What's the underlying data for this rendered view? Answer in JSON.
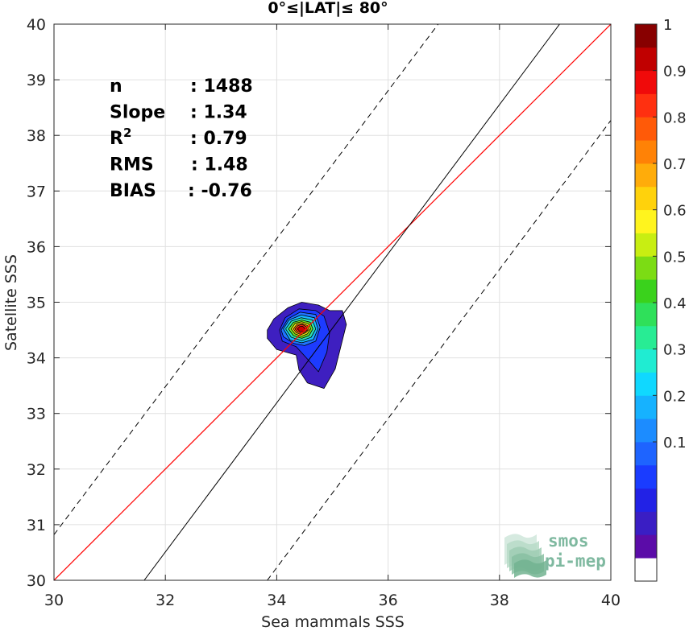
{
  "chart_data": {
    "type": "contour-scatter",
    "title": "0°≤|LAT|≤ 80°",
    "xlabel": "Sea mammals SSS",
    "ylabel": "Satellite SSS",
    "xlim": [
      30,
      40
    ],
    "ylim": [
      30,
      40
    ],
    "xticks": [
      30,
      32,
      34,
      36,
      38,
      40
    ],
    "yticks": [
      30,
      31,
      32,
      33,
      34,
      35,
      36,
      37,
      38,
      39,
      40
    ],
    "grid": true,
    "stats": [
      {
        "label": "n",
        "value": ": 1488"
      },
      {
        "label": "Slope",
        "value": ": 1.34"
      },
      {
        "label": "R",
        "sup": "2",
        "value": ": 0.79"
      },
      {
        "label": "RMS",
        "value": ": 1.48"
      },
      {
        "label": "BIAS",
        "value": ": -0.76"
      }
    ],
    "lines": {
      "identity": {
        "slope": 1,
        "intercept": 0,
        "color": "#ff0000"
      },
      "fit": {
        "points": [
          [
            31.62,
            30
          ],
          [
            39.08,
            40
          ]
        ],
        "color": "#000000"
      },
      "fit_upper": {
        "points": [
          [
            30,
            30.82
          ],
          [
            36.9,
            40
          ]
        ],
        "color": "#000000",
        "dashed": true
      },
      "fit_lower": {
        "points": [
          [
            33.83,
            30
          ],
          [
            40,
            38.27
          ]
        ],
        "color": "#000000",
        "dashed": true
      }
    },
    "contour_center": {
      "x": 34.45,
      "y": 34.52
    },
    "contours": [
      {
        "level": 0.05,
        "color": "#3e1fc0",
        "points": [
          [
            33.83,
            34.5
          ],
          [
            33.95,
            34.7
          ],
          [
            34.2,
            34.9
          ],
          [
            34.45,
            35.0
          ],
          [
            34.75,
            34.95
          ],
          [
            34.95,
            34.85
          ],
          [
            35.18,
            34.85
          ],
          [
            35.25,
            34.6
          ],
          [
            35.15,
            34.2
          ],
          [
            35.05,
            33.8
          ],
          [
            34.85,
            33.45
          ],
          [
            34.55,
            33.55
          ],
          [
            34.4,
            33.78
          ],
          [
            34.35,
            34.05
          ],
          [
            34.0,
            34.15
          ],
          [
            33.83,
            34.35
          ]
        ]
      },
      {
        "level": 0.15,
        "color": "#1d3bff",
        "points": [
          [
            34.05,
            34.5
          ],
          [
            34.15,
            34.72
          ],
          [
            34.4,
            34.88
          ],
          [
            34.7,
            34.85
          ],
          [
            34.85,
            34.75
          ],
          [
            34.95,
            34.45
          ],
          [
            34.9,
            34.1
          ],
          [
            34.75,
            33.75
          ],
          [
            34.55,
            33.98
          ],
          [
            34.35,
            34.2
          ],
          [
            34.1,
            34.3
          ]
        ]
      },
      {
        "level": 0.25,
        "color": "#1f74ff",
        "points": [
          [
            34.08,
            34.5
          ],
          [
            34.2,
            34.7
          ],
          [
            34.42,
            34.82
          ],
          [
            34.7,
            34.78
          ],
          [
            34.78,
            34.55
          ],
          [
            34.7,
            34.3
          ],
          [
            34.5,
            34.22
          ],
          [
            34.3,
            34.26
          ],
          [
            34.12,
            34.38
          ]
        ]
      },
      {
        "level": 0.35,
        "color": "#17b6ff",
        "points": [
          [
            34.12,
            34.52
          ],
          [
            34.22,
            34.68
          ],
          [
            34.44,
            34.77
          ],
          [
            34.68,
            34.72
          ],
          [
            34.74,
            34.52
          ],
          [
            34.66,
            34.33
          ],
          [
            34.45,
            34.27
          ],
          [
            34.24,
            34.32
          ]
        ]
      },
      {
        "level": 0.45,
        "color": "#2de3b0",
        "points": [
          [
            34.16,
            34.52
          ],
          [
            34.26,
            34.66
          ],
          [
            34.44,
            34.72
          ],
          [
            34.64,
            34.68
          ],
          [
            34.7,
            34.52
          ],
          [
            34.62,
            34.37
          ],
          [
            34.45,
            34.31
          ],
          [
            34.26,
            34.37
          ]
        ]
      },
      {
        "level": 0.55,
        "color": "#6fe01f",
        "points": [
          [
            34.21,
            34.52
          ],
          [
            34.3,
            34.64
          ],
          [
            34.45,
            34.68
          ],
          [
            34.6,
            34.64
          ],
          [
            34.65,
            34.52
          ],
          [
            34.58,
            34.4
          ],
          [
            34.45,
            34.35
          ],
          [
            34.3,
            34.4
          ]
        ]
      },
      {
        "level": 0.65,
        "color": "#f7e614",
        "points": [
          [
            34.26,
            34.52
          ],
          [
            34.33,
            34.62
          ],
          [
            34.45,
            34.65
          ],
          [
            34.57,
            34.61
          ],
          [
            34.61,
            34.52
          ],
          [
            34.55,
            34.43
          ],
          [
            34.45,
            34.39
          ],
          [
            34.33,
            34.43
          ]
        ]
      },
      {
        "level": 0.75,
        "color": "#ff8a0f",
        "points": [
          [
            34.3,
            34.52
          ],
          [
            34.36,
            34.6
          ],
          [
            34.46,
            34.62
          ],
          [
            34.55,
            34.58
          ],
          [
            34.58,
            34.51
          ],
          [
            34.52,
            34.45
          ],
          [
            34.44,
            34.42
          ],
          [
            34.35,
            34.45
          ]
        ]
      },
      {
        "level": 0.85,
        "color": "#ff2a12",
        "points": [
          [
            34.33,
            34.52
          ],
          [
            34.38,
            34.58
          ],
          [
            34.46,
            34.6
          ],
          [
            34.53,
            34.56
          ],
          [
            34.55,
            34.5
          ],
          [
            34.5,
            34.46
          ],
          [
            34.43,
            34.45
          ],
          [
            34.37,
            34.47
          ]
        ]
      },
      {
        "level": 0.95,
        "color": "#cf0000",
        "points": [
          [
            34.37,
            34.52
          ],
          [
            34.41,
            34.56
          ],
          [
            34.46,
            34.57
          ],
          [
            34.5,
            34.54
          ],
          [
            34.51,
            34.5
          ],
          [
            34.47,
            34.48
          ],
          [
            34.41,
            34.48
          ]
        ]
      }
    ],
    "colorbar": {
      "ticks": [
        "0.1",
        "0.2",
        "0.3",
        "0.4",
        "0.5",
        "0.6",
        "0.7",
        "0.8",
        "0.9",
        "1"
      ],
      "tick_values": [
        0.1,
        0.2,
        0.3,
        0.4,
        0.5,
        0.6,
        0.7,
        0.8,
        0.9,
        1.0
      ],
      "colors": [
        "#ffffff",
        "#5b0ca8",
        "#3a1ec4",
        "#2222e6",
        "#1a3cff",
        "#1e64ff",
        "#1c8cff",
        "#16b2ff",
        "#10d8ff",
        "#20ecd2",
        "#28ec94",
        "#2fe05a",
        "#3ad21c",
        "#7cdc14",
        "#c8ee12",
        "#fff41e",
        "#ffd20c",
        "#ffac0a",
        "#ff8206",
        "#ff5a08",
        "#ff3010",
        "#f00a0a",
        "#c00000",
        "#880000"
      ]
    },
    "logo": {
      "line1": "smos",
      "line2": "pi-mep"
    }
  }
}
